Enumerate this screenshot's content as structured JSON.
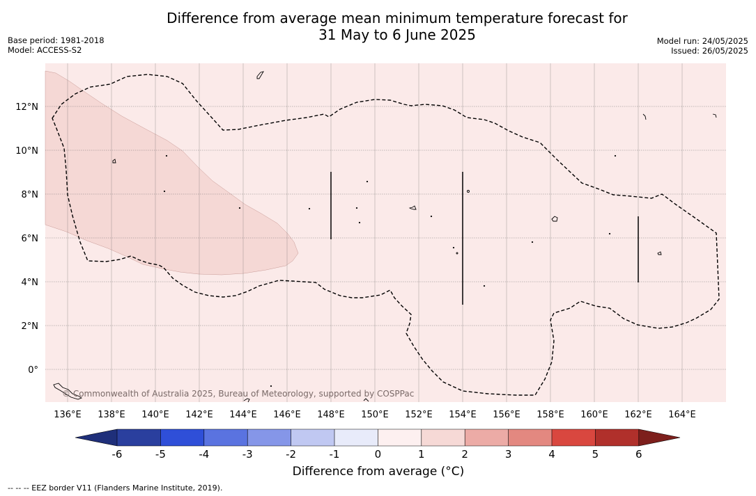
{
  "title_line1": "Difference from average mean minimum temperature forecast for",
  "title_line2": "31 May to 6 June 2025",
  "base_period": "Base period: 1981-2018",
  "model": "Model: ACCESS-S2",
  "model_run": "Model run: 24/05/2025",
  "issued": "Issued: 26/05/2025",
  "copyright": "© Commonwealth of Australia 2025, Bureau of Meteorology, supported by COSPPac",
  "colorbar_label": "Difference from average (°C)",
  "footer_note": "--  --  -- EEZ border V11 (Flanders Marine Institute, 2019).",
  "lon_labels": [
    "136°E",
    "138°E",
    "140°E",
    "142°E",
    "144°E",
    "146°E",
    "148°E",
    "150°E",
    "152°E",
    "154°E",
    "156°E",
    "158°E",
    "160°E",
    "162°E",
    "164°E"
  ],
  "lat_labels": [
    "12°N",
    "10°N",
    "8°N",
    "6°N",
    "4°N",
    "2°N",
    "0°"
  ],
  "colorbar_ticks": [
    "-6",
    "-5",
    "-4",
    "-3",
    "-2",
    "-1",
    "0",
    "1",
    "2",
    "3",
    "4",
    "5",
    "6"
  ],
  "colorbar_colors": [
    "#2a3f9e",
    "#2f4fd8",
    "#5a73e0",
    "#8596e8",
    "#c0c8f2",
    "#e8ebfa",
    "#fdf0f0",
    "#f6d9d6",
    "#ecaba6",
    "#e38880",
    "#d9473f",
    "#b0302b"
  ],
  "colors": {
    "field_1_2": "#fbeae9",
    "field_2_3": "#f5d8d5",
    "neg_end": "#1f2f7a",
    "pos_end": "#7d1f1c",
    "grid": "#666666",
    "copyright_text": "#7a6a68"
  }
}
